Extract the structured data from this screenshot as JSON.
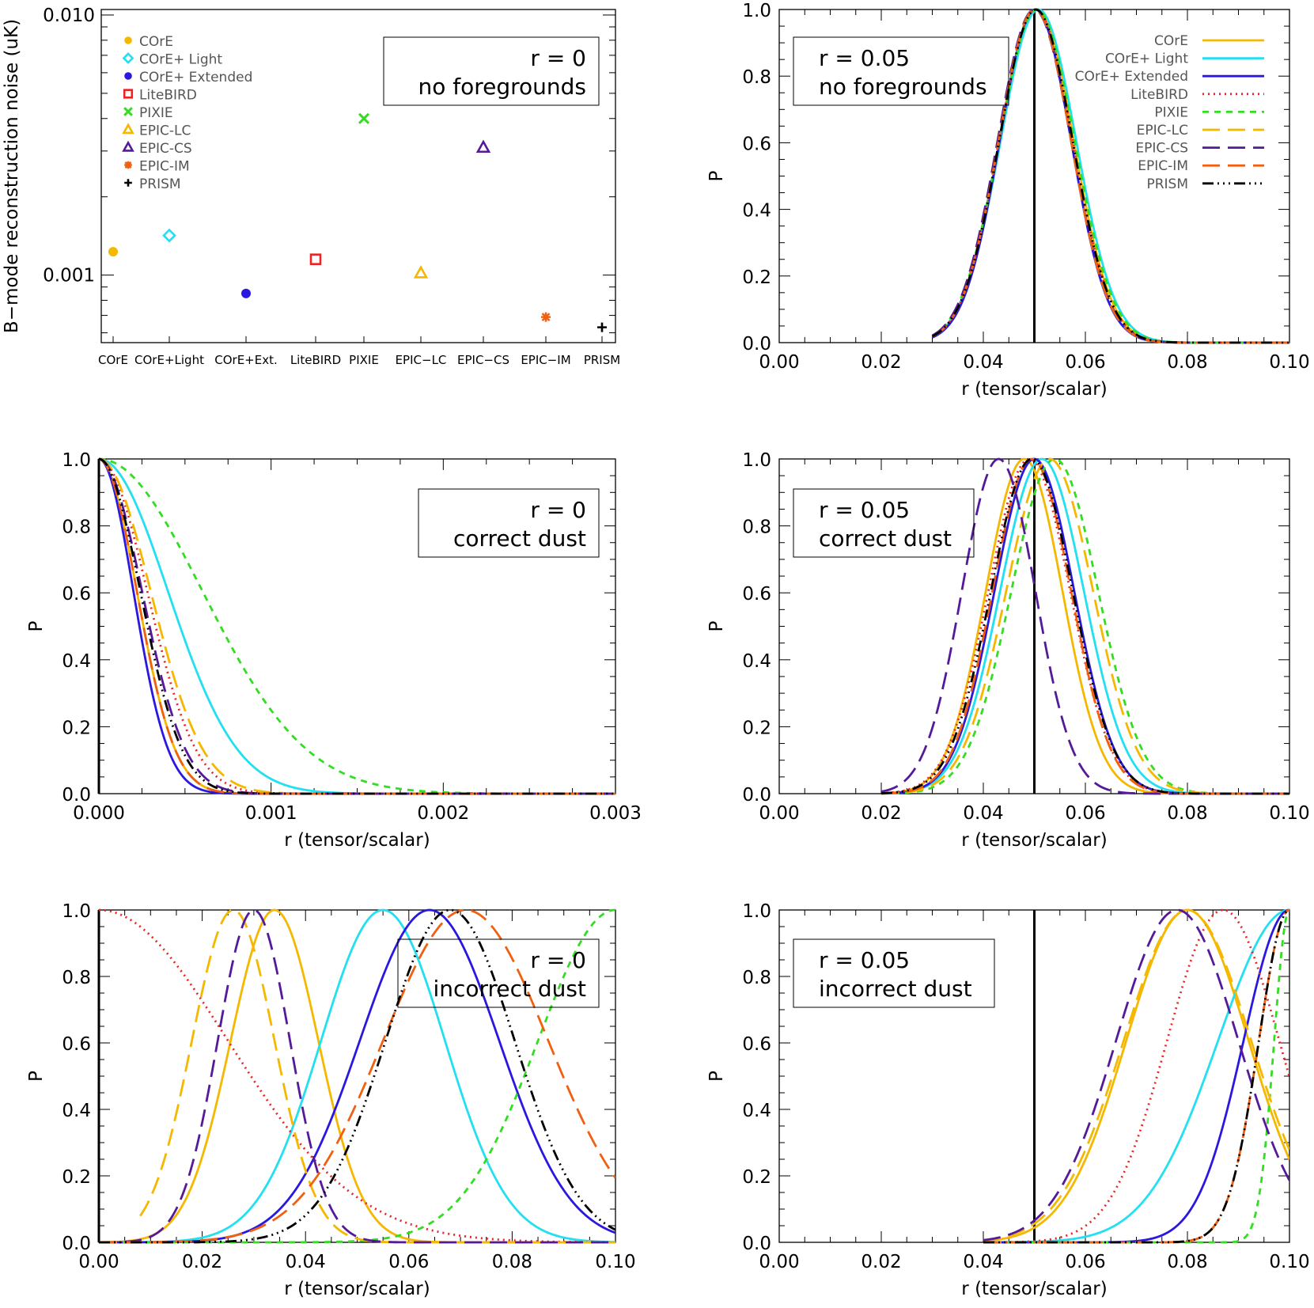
{
  "colors": {
    "core": "#f5b800",
    "core_light": "#22e0f0",
    "core_ext": "#2a18e0",
    "litebird": "#ee2222",
    "pixie": "#33dd22",
    "epic_lc": "#f5b800",
    "epic_cs": "#551a99",
    "epic_im": "#f06010",
    "prism": "#000000"
  },
  "series_styles": [
    {
      "key": "core",
      "dash": "solid"
    },
    {
      "key": "core_light",
      "dash": "solid"
    },
    {
      "key": "core_ext",
      "dash": "solid"
    },
    {
      "key": "litebird",
      "dash": "dotted"
    },
    {
      "key": "pixie",
      "dash": "short-dash"
    },
    {
      "key": "epic_lc",
      "dash": "long-dash"
    },
    {
      "key": "epic_cs",
      "dash": "long-dash"
    },
    {
      "key": "epic_im",
      "dash": "long-dash"
    },
    {
      "key": "prism",
      "dash": "dash-dot-dot-dot"
    }
  ],
  "legend_left": [
    {
      "label": "COrE",
      "marker": "filled-circle",
      "color_key": "core"
    },
    {
      "label": "COrE+ Light",
      "marker": "diamond",
      "color_key": "core_light"
    },
    {
      "label": "COrE+ Extended",
      "marker": "filled-circle",
      "color_key": "core_ext"
    },
    {
      "label": "LiteBIRD",
      "marker": "square",
      "color_key": "litebird"
    },
    {
      "label": "PIXIE",
      "marker": "cross",
      "color_key": "pixie"
    },
    {
      "label": "EPIC-LC",
      "marker": "triangle",
      "color_key": "epic_lc"
    },
    {
      "label": "EPIC-CS",
      "marker": "triangle",
      "color_key": "epic_cs"
    },
    {
      "label": "EPIC-IM",
      "marker": "asterisk",
      "color_key": "epic_im"
    },
    {
      "label": "PRISM",
      "marker": "plus",
      "color_key": "prism"
    }
  ],
  "legend_right": [
    "COrE",
    "COrE+ Light",
    "COrE+ Extended",
    "LiteBIRD",
    "PIXIE",
    "EPIC-LC",
    "EPIC-CS",
    "EPIC-IM",
    "PRISM"
  ],
  "chart_data": [
    {
      "type": "scatter",
      "ylabel": "B−mode reconstruction noise (uK)",
      "yscale": "log",
      "ylim": [
        0.00055,
        0.0105
      ],
      "yticks": [
        "0.010",
        "0.001"
      ],
      "categories": [
        "COrE",
        "COrE+Light",
        "COrE+Ext.",
        "LiteBIRD",
        "PIXIE",
        "EPIC−LC",
        "EPIC−CS",
        "EPIC−IM",
        "PRISM"
      ],
      "values": [
        0.00123,
        0.00142,
        0.00085,
        0.00115,
        0.004,
        0.00102,
        0.0031,
        0.00069,
        0.00063
      ],
      "box_text": [
        "r = 0",
        "no foregrounds"
      ]
    },
    {
      "type": "line",
      "xlabel": "r (tensor/scalar)",
      "ylabel": "P",
      "xlim": [
        0,
        0.1
      ],
      "ylim": [
        0,
        1
      ],
      "xticks": [
        "0.00",
        "0.02",
        "0.04",
        "0.06",
        "0.08",
        "0.10"
      ],
      "yticks": [
        "0.0",
        "0.2",
        "0.4",
        "0.6",
        "0.8",
        "1.0"
      ],
      "vline": 0.05,
      "box_text": [
        "r = 0.05",
        "no foregrounds"
      ],
      "series": [
        {
          "model": "gauss",
          "peak": 0.0505,
          "sigma": 0.0072,
          "start": 0.03
        },
        {
          "model": "gauss",
          "peak": 0.0508,
          "sigma": 0.0074,
          "start": 0.03
        },
        {
          "model": "gauss",
          "peak": 0.0502,
          "sigma": 0.007,
          "start": 0.03
        },
        {
          "model": "gauss",
          "peak": 0.0503,
          "sigma": 0.0072,
          "start": 0.03
        },
        {
          "model": "gauss",
          "peak": 0.0505,
          "sigma": 0.0074,
          "start": 0.03
        },
        {
          "model": "gauss",
          "peak": 0.0501,
          "sigma": 0.0071,
          "start": 0.03
        },
        {
          "model": "gauss",
          "peak": 0.05,
          "sigma": 0.0072,
          "start": 0.03
        },
        {
          "model": "gauss",
          "peak": 0.0501,
          "sigma": 0.0071,
          "start": 0.03
        },
        {
          "model": "gauss",
          "peak": 0.0503,
          "sigma": 0.0072,
          "start": 0.03
        }
      ]
    },
    {
      "type": "line",
      "xlabel": "r (tensor/scalar)",
      "ylabel": "P",
      "xlim": [
        0,
        0.003
      ],
      "ylim": [
        0,
        1
      ],
      "xticks": [
        "0.000",
        "0.001",
        "0.002",
        "0.003"
      ],
      "yticks": [
        "0.0",
        "0.2",
        "0.4",
        "0.6",
        "0.8",
        "1.0"
      ],
      "box_text": [
        "r = 0",
        "correct dust"
      ],
      "series": [
        {
          "model": "gauss",
          "peak": 0,
          "sigma": 0.00022
        },
        {
          "model": "gauss",
          "peak": 0,
          "sigma": 0.0004
        },
        {
          "model": "gauss",
          "peak": 0,
          "sigma": 0.0002
        },
        {
          "model": "gauss",
          "peak": 0,
          "sigma": 0.00028
        },
        {
          "model": "gauss",
          "peak": 0,
          "sigma": 0.0006
        },
        {
          "model": "gauss",
          "peak": 0,
          "sigma": 0.0003
        },
        {
          "model": "gauss",
          "peak": 0,
          "sigma": 0.00025
        },
        {
          "model": "gauss",
          "peak": 0,
          "sigma": 0.00022
        },
        {
          "model": "gauss",
          "peak": 0,
          "sigma": 0.00024
        }
      ]
    },
    {
      "type": "line",
      "xlabel": "r (tensor/scalar)",
      "ylabel": "P",
      "xlim": [
        0,
        0.1
      ],
      "ylim": [
        0,
        1
      ],
      "xticks": [
        "0.00",
        "0.02",
        "0.04",
        "0.06",
        "0.08",
        "0.10"
      ],
      "yticks": [
        "0.0",
        "0.2",
        "0.4",
        "0.6",
        "0.8",
        "1.0"
      ],
      "vline": 0.05,
      "box_text": [
        "r = 0.05",
        "correct dust"
      ],
      "series": [
        {
          "model": "gauss",
          "peak": 0.048,
          "sigma": 0.0075,
          "start": 0.02
        },
        {
          "model": "gauss",
          "peak": 0.0515,
          "sigma": 0.0082,
          "start": 0.02
        },
        {
          "model": "gauss",
          "peak": 0.05,
          "sigma": 0.0078,
          "start": 0.02
        },
        {
          "model": "gauss",
          "peak": 0.049,
          "sigma": 0.008,
          "start": 0.02
        },
        {
          "model": "gauss",
          "peak": 0.054,
          "sigma": 0.0085,
          "start": 0.02
        },
        {
          "model": "gauss",
          "peak": 0.053,
          "sigma": 0.0085,
          "start": 0.02
        },
        {
          "model": "gauss",
          "peak": 0.043,
          "sigma": 0.0072,
          "start": 0.02
        },
        {
          "model": "gauss",
          "peak": 0.0495,
          "sigma": 0.0077,
          "start": 0.02
        },
        {
          "model": "gauss",
          "peak": 0.0495,
          "sigma": 0.008,
          "start": 0.02
        }
      ]
    },
    {
      "type": "line",
      "xlabel": "r (tensor/scalar)",
      "ylabel": "P",
      "xlim": [
        0,
        0.1
      ],
      "ylim": [
        0,
        1
      ],
      "xticks": [
        "0.00",
        "0.02",
        "0.04",
        "0.06",
        "0.08",
        "0.10"
      ],
      "yticks": [
        "0.0",
        "0.2",
        "0.4",
        "0.6",
        "0.8",
        "1.0"
      ],
      "box_text": [
        "r = 0",
        "incorrect dust"
      ],
      "series": [
        {
          "model": "gauss",
          "peak": 0.034,
          "sigma": 0.0085
        },
        {
          "model": "gauss",
          "peak": 0.055,
          "sigma": 0.012
        },
        {
          "model": "gauss",
          "peak": 0.064,
          "sigma": 0.0135
        },
        {
          "model": "gauss",
          "peak": 0.0,
          "sigma": 0.025
        },
        {
          "model": "gauss",
          "peak": 0.1,
          "sigma": 0.015
        },
        {
          "model": "gauss",
          "peak": 0.026,
          "sigma": 0.008,
          "start": 0.008
        },
        {
          "model": "gauss",
          "peak": 0.03,
          "sigma": 0.007
        },
        {
          "model": "gauss",
          "peak": 0.071,
          "sigma": 0.016
        },
        {
          "model": "gauss",
          "peak": 0.068,
          "sigma": 0.0125
        }
      ]
    },
    {
      "type": "line",
      "xlabel": "r (tensor/scalar)",
      "ylabel": "P",
      "xlim": [
        0,
        0.1
      ],
      "ylim": [
        0,
        1
      ],
      "xticks": [
        "0.00",
        "0.02",
        "0.04",
        "0.06",
        "0.08",
        "0.10"
      ],
      "yticks": [
        "0.0",
        "0.2",
        "0.4",
        "0.6",
        "0.8",
        "1.0"
      ],
      "vline": 0.05,
      "box_text": [
        "r = 0.05",
        "incorrect dust"
      ],
      "series": [
        {
          "model": "gauss",
          "peak": 0.08,
          "sigma": 0.012,
          "start": 0.04
        },
        {
          "model": "gauss",
          "peak": 0.1,
          "sigma": 0.014,
          "start": 0.04
        },
        {
          "model": "gauss",
          "peak": 0.1,
          "sigma": 0.009,
          "start": 0.04
        },
        {
          "model": "gauss",
          "peak": 0.087,
          "sigma": 0.011,
          "start": 0.04
        },
        {
          "model": "gauss",
          "peak": 0.1,
          "sigma": 0.003,
          "start": 0.04
        },
        {
          "model": "gauss",
          "peak": 0.08,
          "sigma": 0.0125,
          "start": 0.04
        },
        {
          "model": "gauss",
          "peak": 0.078,
          "sigma": 0.012,
          "start": 0.04
        },
        {
          "model": "gauss",
          "peak": 0.1,
          "sigma": 0.006,
          "start": 0.04
        },
        {
          "model": "gauss",
          "peak": 0.1,
          "sigma": 0.006,
          "start": 0.04
        }
      ]
    }
  ]
}
